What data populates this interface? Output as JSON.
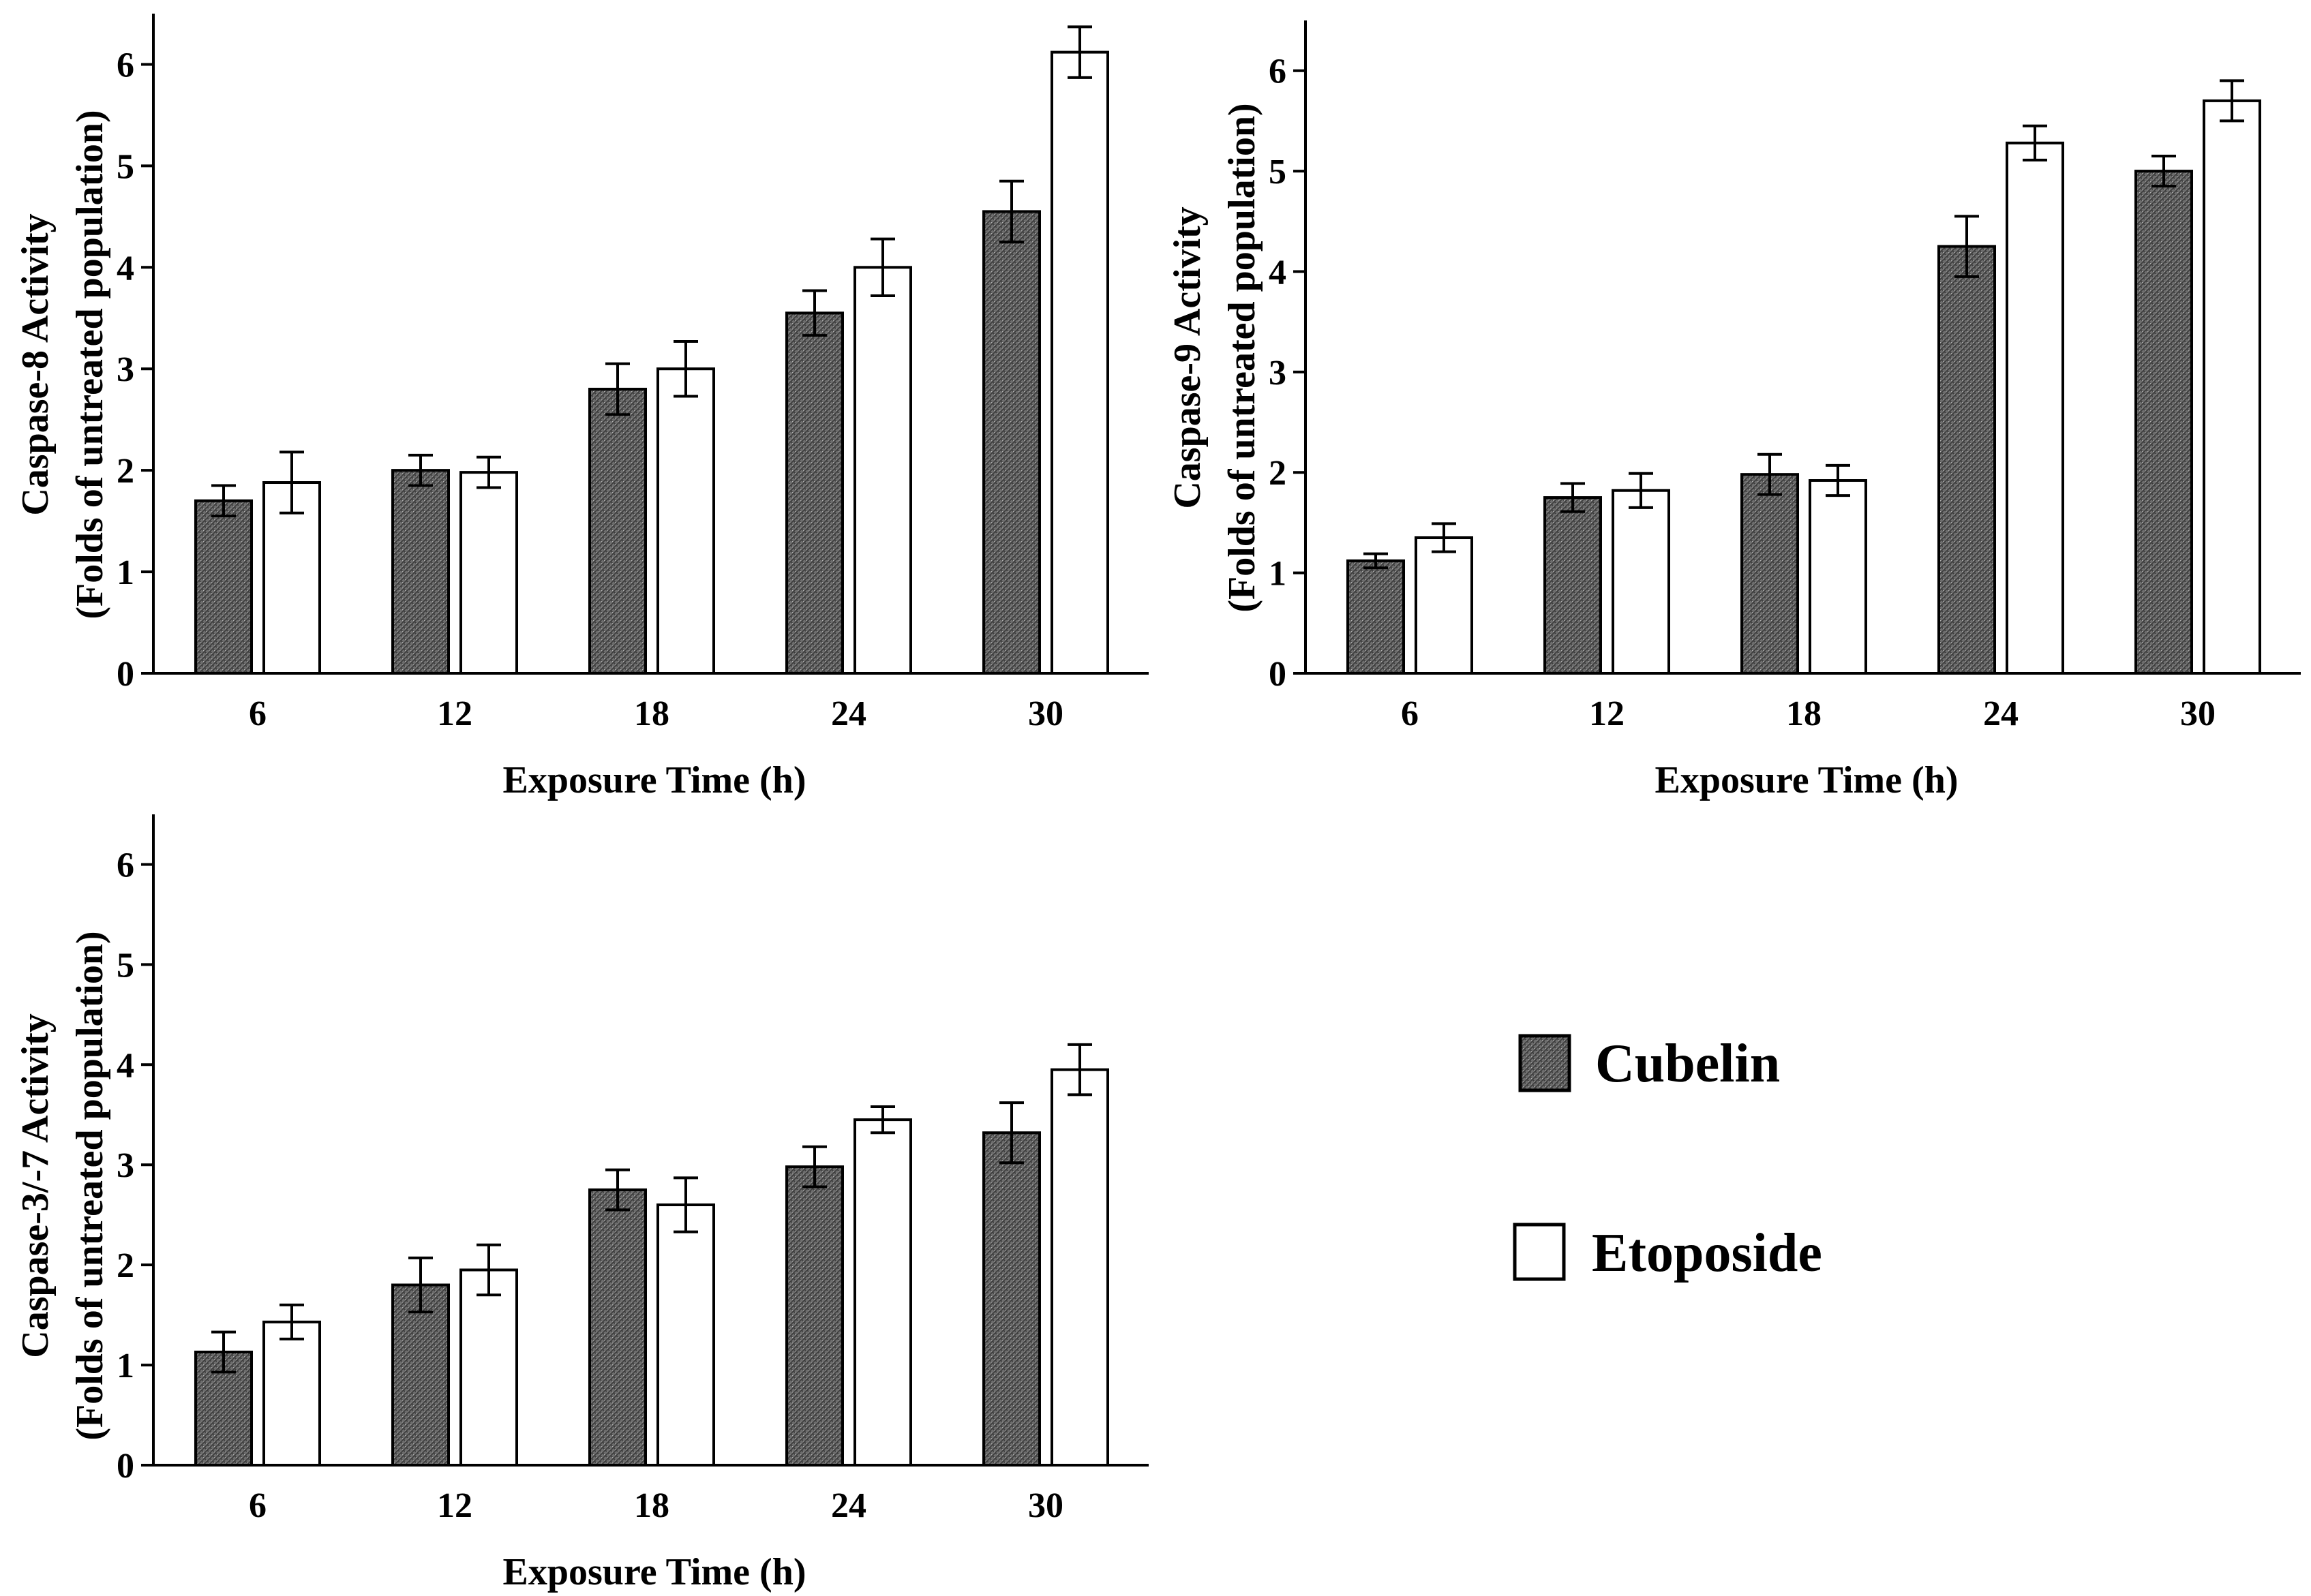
{
  "legend": {
    "items": [
      {
        "label": "Cubelin",
        "pattern": "crosshatch-gray"
      },
      {
        "label": "Etoposide",
        "pattern": "white"
      }
    ]
  },
  "colors": {
    "cubelin_fill": "#6e6e6e",
    "etoposide_fill": "#ffffff",
    "axis": "#000000"
  },
  "chart_data": [
    {
      "type": "bar",
      "title": "",
      "xlabel": "Exposure Time (h)",
      "ylabel_line1": "Caspase-8 Activity",
      "ylabel_line2": "(Folds of untreated population)",
      "categories": [
        "6",
        "12",
        "18",
        "24",
        "30"
      ],
      "ylim": [
        0,
        6.5
      ],
      "yticks": [
        0,
        1,
        2,
        3,
        4,
        5,
        6
      ],
      "series": [
        {
          "name": "Cubelin",
          "values": [
            1.7,
            2.0,
            2.8,
            3.55,
            4.55
          ],
          "errors": [
            0.15,
            0.15,
            0.25,
            0.22,
            0.3
          ]
        },
        {
          "name": "Etoposide",
          "values": [
            1.88,
            1.98,
            3.0,
            4.0,
            6.12
          ],
          "errors": [
            0.3,
            0.15,
            0.27,
            0.28,
            0.25
          ]
        }
      ]
    },
    {
      "type": "bar",
      "title": "",
      "xlabel": "Exposure Time (h)",
      "ylabel_line1": "Caspase-9 Activity",
      "ylabel_line2": "(Folds of untreated population)",
      "categories": [
        "6",
        "12",
        "18",
        "24",
        "30"
      ],
      "ylim": [
        0,
        6.5
      ],
      "yticks": [
        0,
        1,
        2,
        3,
        4,
        5,
        6
      ],
      "series": [
        {
          "name": "Cubelin",
          "values": [
            1.12,
            1.75,
            1.98,
            4.25,
            5.0
          ],
          "errors": [
            0.07,
            0.14,
            0.2,
            0.3,
            0.15
          ]
        },
        {
          "name": "Etoposide",
          "values": [
            1.35,
            1.82,
            1.92,
            5.28,
            5.7
          ],
          "errors": [
            0.14,
            0.17,
            0.15,
            0.17,
            0.2
          ]
        }
      ]
    },
    {
      "type": "bar",
      "title": "",
      "xlabel": "Exposure Time (h)",
      "ylabel_line1": "Caspase-3/-7 Activity",
      "ylabel_line2": "(Folds of untreated population)",
      "categories": [
        "6",
        "12",
        "18",
        "24",
        "30"
      ],
      "ylim": [
        0,
        6.5
      ],
      "yticks": [
        0,
        1,
        2,
        3,
        4,
        5,
        6
      ],
      "series": [
        {
          "name": "Cubelin",
          "values": [
            1.13,
            1.8,
            2.75,
            2.98,
            3.32
          ],
          "errors": [
            0.2,
            0.27,
            0.2,
            0.2,
            0.3
          ]
        },
        {
          "name": "Etoposide",
          "values": [
            1.43,
            1.95,
            2.6,
            3.45,
            3.95
          ],
          "errors": [
            0.17,
            0.25,
            0.27,
            0.13,
            0.25
          ]
        }
      ]
    }
  ]
}
